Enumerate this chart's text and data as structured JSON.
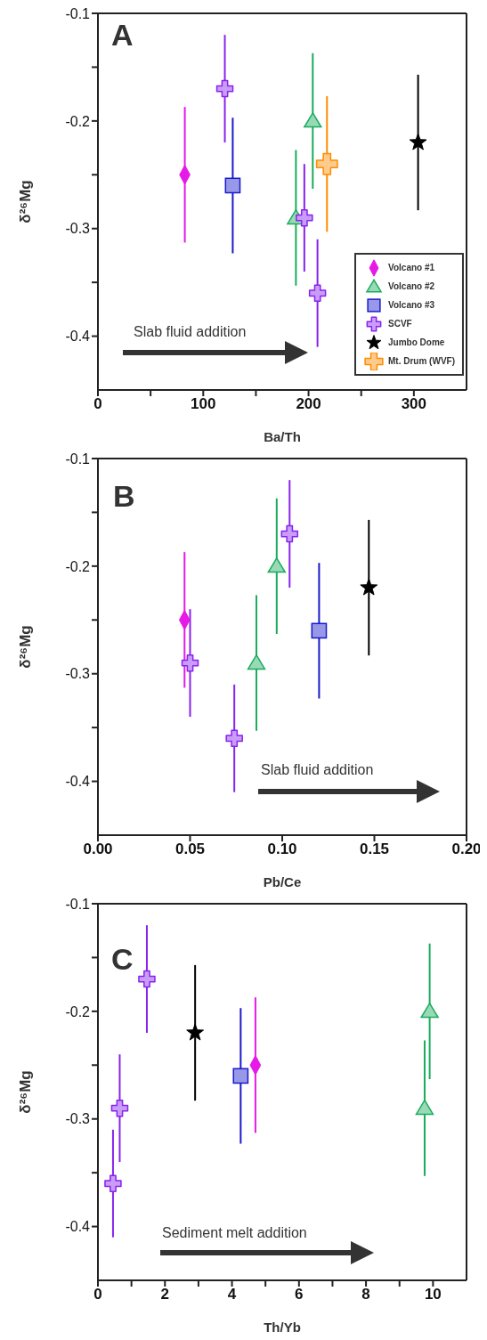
{
  "chart_data": [
    {
      "type": "scatter",
      "xlabel": "Ba/Th",
      "ylabel": "δ²⁶Mg",
      "legend": "bottom right",
      "annotations": [
        "A",
        "Slab fluid addition"
      ],
      "xlim": [
        0,
        350
      ],
      "xticks": [
        0,
        {
          "value": 50,
          "label": null
        },
        100,
        {
          "value": 150,
          "label": null
        },
        200,
        {
          "value": 250,
          "label": null
        },
        300
      ],
      "ylim": [
        -0.45,
        -0.1
      ],
      "yticks": [
        -0.1,
        {
          "value": -0.15,
          "label": null
        },
        -0.2,
        {
          "value": -0.25,
          "label": null
        },
        -0.3,
        {
          "value": -0.35,
          "label": null
        },
        -0.4
      ],
      "series": [
        {
          "name": "Volcano #1",
          "color": "#e619e6",
          "marker": "diamond",
          "x": [
            82.5
          ],
          "values": [
            -0.25
          ],
          "errors": [
            0.063
          ]
        },
        {
          "name": "Volcano #2",
          "color": "#1aab5c",
          "marker": "triangle",
          "x": [
            188,
            204
          ],
          "values": [
            -0.29,
            -0.2
          ],
          "errors": [
            0.063,
            0.063
          ]
        },
        {
          "name": "Volcano #3",
          "color": "#1a1acc",
          "marker": "square",
          "x": [
            128
          ],
          "values": [
            -0.26
          ],
          "errors": [
            0.063
          ]
        },
        {
          "name": "SCVF",
          "color": "#8822ee",
          "marker": "cross",
          "x": [
            120.5,
            196,
            208.5
          ],
          "values": [
            -0.17,
            -0.29,
            -0.36
          ],
          "errors": [
            0.05,
            0.05,
            0.05
          ]
        },
        {
          "name": "Jumbo Dome",
          "color": "#000000",
          "marker": "star",
          "x": [
            304
          ],
          "values": [
            -0.22
          ],
          "errors": [
            0.063
          ]
        },
        {
          "name": "Mt. Drum (WVF)",
          "color": "#ff8c00",
          "marker": "cross",
          "x": [
            217.5
          ],
          "values": [
            -0.24
          ],
          "errors": [
            0.063
          ]
        }
      ]
    },
    {
      "type": "scatter",
      "xlabel": "Pb/Ce",
      "ylabel": "δ²⁶Mg",
      "annotations": [
        "B",
        "Slab fluid addition"
      ],
      "xlim": [
        0,
        0.2
      ],
      "xticks": [
        {
          "value": 0,
          "label": "0.00"
        },
        {
          "value": 0.05,
          "label": "0.05"
        },
        {
          "value": 0.1,
          "label": "0.10"
        },
        {
          "value": 0.15,
          "label": "0.15"
        },
        {
          "value": 0.2,
          "label": "0.20"
        }
      ],
      "ylim": [
        -0.45,
        -0.1
      ],
      "yticks": [
        -0.1,
        {
          "value": -0.15,
          "label": null
        },
        -0.2,
        {
          "value": -0.25,
          "label": null
        },
        -0.3,
        {
          "value": -0.35,
          "label": null
        },
        -0.4
      ],
      "series": [
        {
          "color": "#e619e6",
          "marker": "diamond",
          "x": [
            0.047
          ],
          "values": [
            -0.25
          ],
          "errors": [
            0.063
          ]
        },
        {
          "color": "#1aab5c",
          "marker": "triangle",
          "x": [
            0.086,
            0.097
          ],
          "values": [
            -0.29,
            -0.2
          ],
          "errors": [
            0.063,
            0.063
          ]
        },
        {
          "color": "#1a1acc",
          "marker": "square",
          "x": [
            0.12
          ],
          "values": [
            -0.26
          ],
          "errors": [
            0.063
          ]
        },
        {
          "color": "#8822ee",
          "marker": "cross",
          "x": [
            0.05,
            0.074,
            0.104
          ],
          "values": [
            -0.29,
            -0.36,
            -0.17
          ],
          "errors": [
            0.05,
            0.05,
            0.05
          ]
        },
        {
          "color": "#000000",
          "marker": "star",
          "x": [
            0.147
          ],
          "values": [
            -0.22
          ],
          "errors": [
            0.063
          ]
        }
      ]
    },
    {
      "type": "scatter",
      "xlabel": "Th/Yb",
      "ylabel": "δ²⁶Mg",
      "annotations": [
        "C",
        "Sediment melt addition"
      ],
      "xlim": [
        0,
        11
      ],
      "xticks": [
        0,
        {
          "value": 1,
          "label": null
        },
        2,
        {
          "value": 3,
          "label": null
        },
        4,
        {
          "value": 5,
          "label": null
        },
        6,
        {
          "value": 7,
          "label": null
        },
        8,
        {
          "value": 9,
          "label": null
        },
        10
      ],
      "ylim": [
        -0.45,
        -0.1
      ],
      "yticks": [
        -0.1,
        {
          "value": -0.15,
          "label": null
        },
        -0.2,
        {
          "value": -0.25,
          "label": null
        },
        -0.3,
        {
          "value": -0.35,
          "label": null
        },
        -0.4
      ],
      "series": [
        {
          "color": "#e619e6",
          "marker": "diamond",
          "x": [
            4.7
          ],
          "values": [
            -0.25
          ],
          "errors": [
            0.063
          ]
        },
        {
          "color": "#1aab5c",
          "marker": "triangle",
          "x": [
            9.75,
            9.9
          ],
          "values": [
            -0.29,
            -0.2
          ],
          "errors": [
            0.063,
            0.063
          ]
        },
        {
          "color": "#1a1acc",
          "marker": "square",
          "x": [
            4.26
          ],
          "values": [
            -0.26
          ],
          "errors": [
            0.063
          ]
        },
        {
          "color": "#8822ee",
          "marker": "cross",
          "x": [
            0.45,
            0.65,
            1.46
          ],
          "values": [
            -0.36,
            -0.29,
            -0.17
          ],
          "errors": [
            0.05,
            0.05,
            0.05
          ]
        },
        {
          "color": "#000000",
          "marker": "star",
          "x": [
            2.9
          ],
          "values": [
            -0.22
          ],
          "errors": [
            0.063
          ]
        }
      ]
    }
  ]
}
